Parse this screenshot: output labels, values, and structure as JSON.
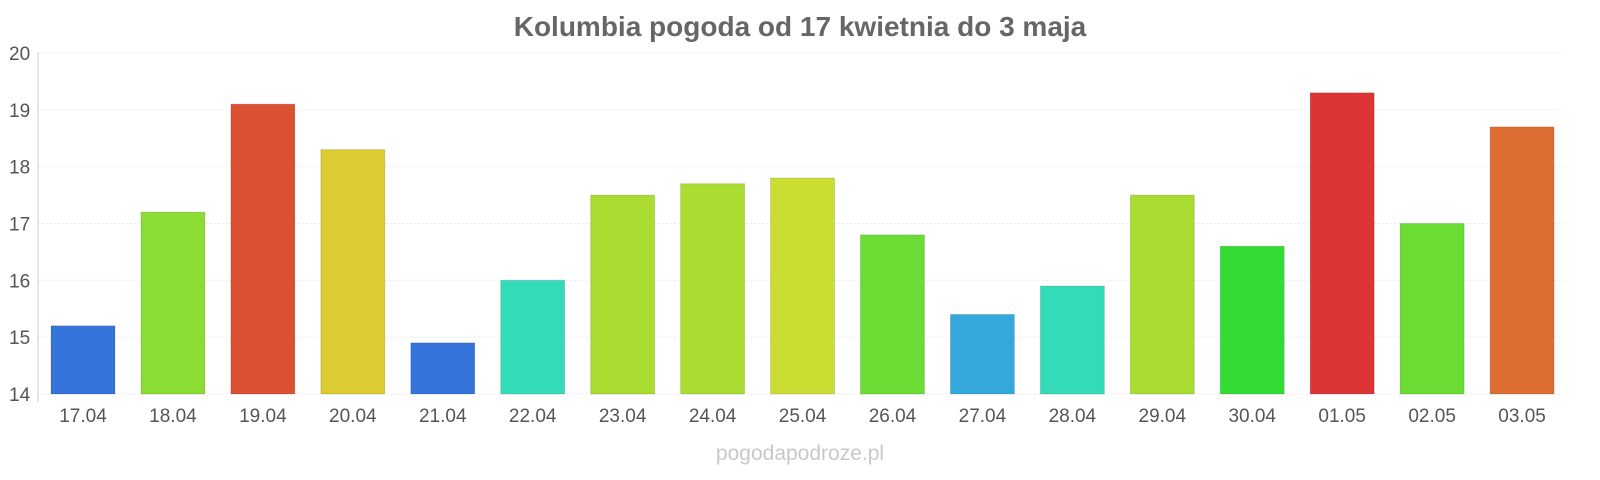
{
  "chart_data": {
    "type": "bar",
    "title": "Kolumbia pogoda od 17 kwietnia do 3 maja",
    "xlabel": "",
    "ylabel": "",
    "ylim": [
      14,
      20
    ],
    "yticks": [
      "14",
      "15",
      "16",
      "17",
      "18",
      "19",
      "20"
    ],
    "categories": [
      "17.04",
      "18.04",
      "19.04",
      "20.04",
      "21.04",
      "22.04",
      "23.04",
      "24.04",
      "25.04",
      "26.04",
      "27.04",
      "28.04",
      "29.04",
      "30.04",
      "01.05",
      "02.05",
      "03.05"
    ],
    "values": [
      15.2,
      17.2,
      19.1,
      18.3,
      14.9,
      16.0,
      17.5,
      17.7,
      17.8,
      16.8,
      15.4,
      15.9,
      17.5,
      16.6,
      19.3,
      17.0,
      18.7
    ],
    "colors": [
      "#3574db",
      "#8bdc33",
      "#dd5133",
      "#dccb32",
      "#3574db",
      "#33dbb9",
      "#aadc32",
      "#aadc32",
      "#cbdc33",
      "#6adc33",
      "#35a8db",
      "#33dbb9",
      "#aadc32",
      "#33dc35",
      "#dc3535",
      "#6adc33",
      "#dd6e33"
    ],
    "grid": true,
    "legend": "none"
  },
  "footer": {
    "watermark": "pogodapodroze.pl"
  }
}
